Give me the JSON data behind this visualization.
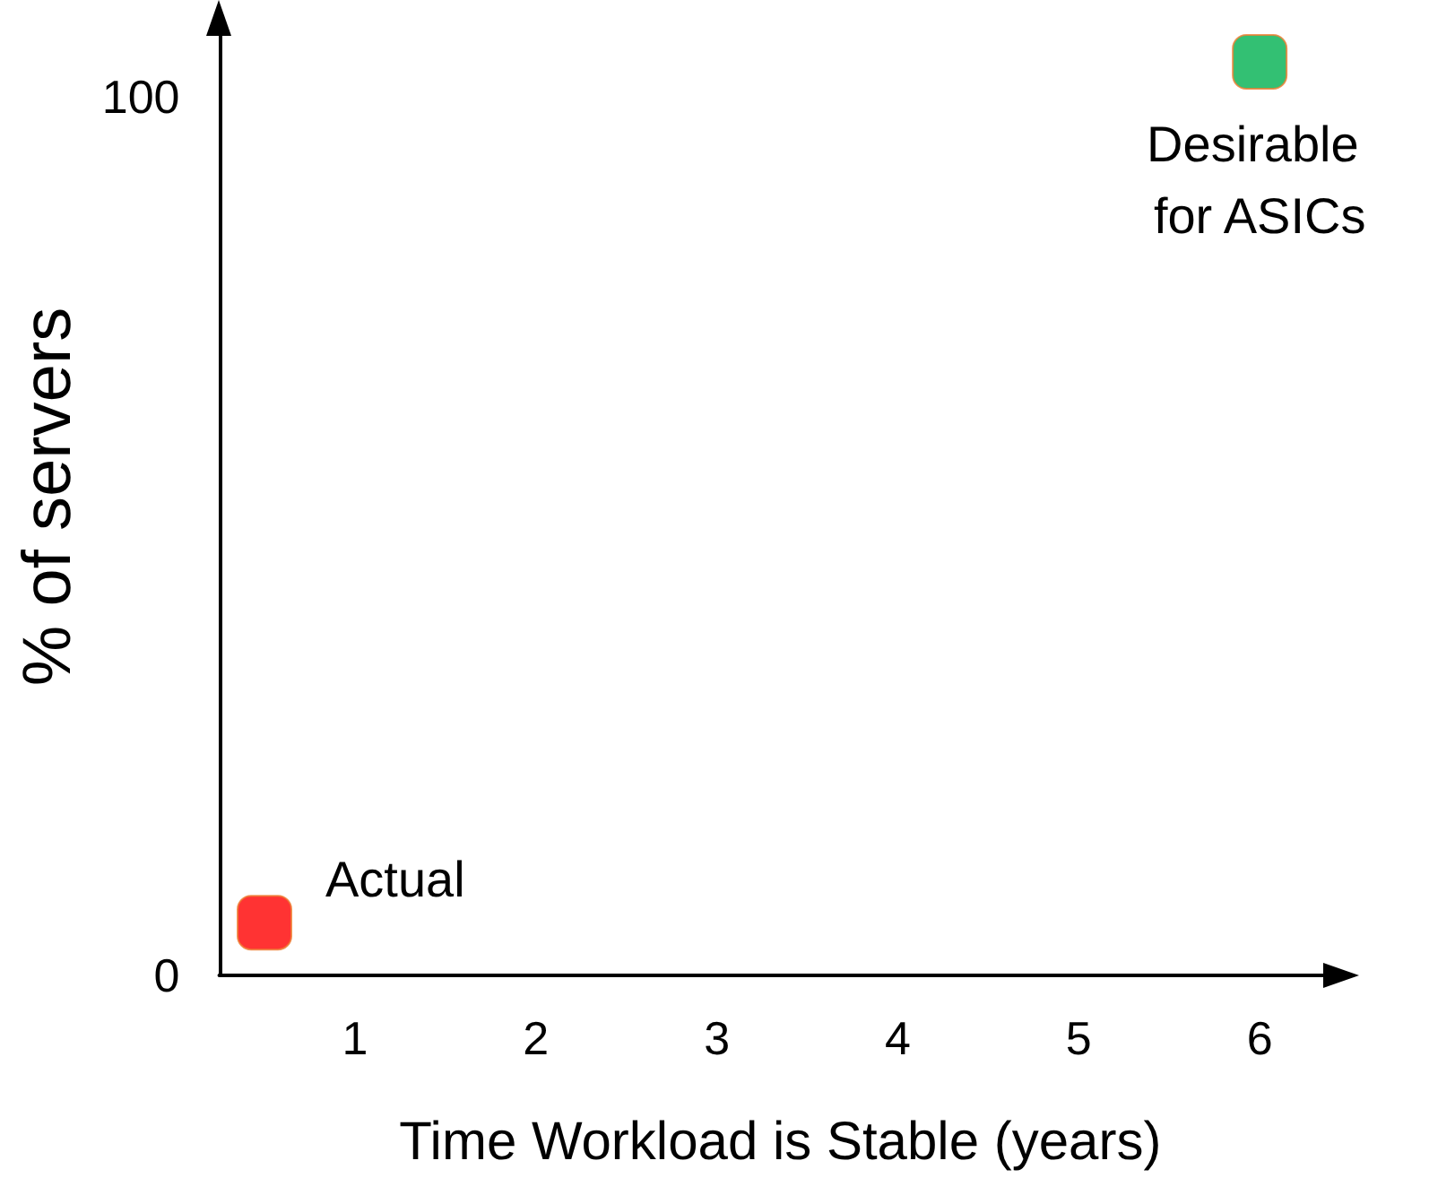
{
  "chart_data": {
    "type": "scatter",
    "xlabel": "Time Workload is Stable (years)",
    "ylabel": "% of servers",
    "x": [
      0.5,
      6
    ],
    "values": [
      6,
      104
    ],
    "colors": [
      "#ff0000",
      "#00b050"
    ],
    "marker": "square",
    "xlim": [
      0.25,
      6.45
    ],
    "xticks": [
      1,
      2,
      3,
      4,
      5,
      6
    ],
    "ylim": [
      0,
      109
    ],
    "yticks": [
      0,
      100
    ],
    "grid": false,
    "annotations": [
      {
        "text": "Actual",
        "x": 0.5,
        "y": 6
      },
      {
        "text": "Desirable for ASICs",
        "x": 6,
        "y": 104
      }
    ]
  }
}
